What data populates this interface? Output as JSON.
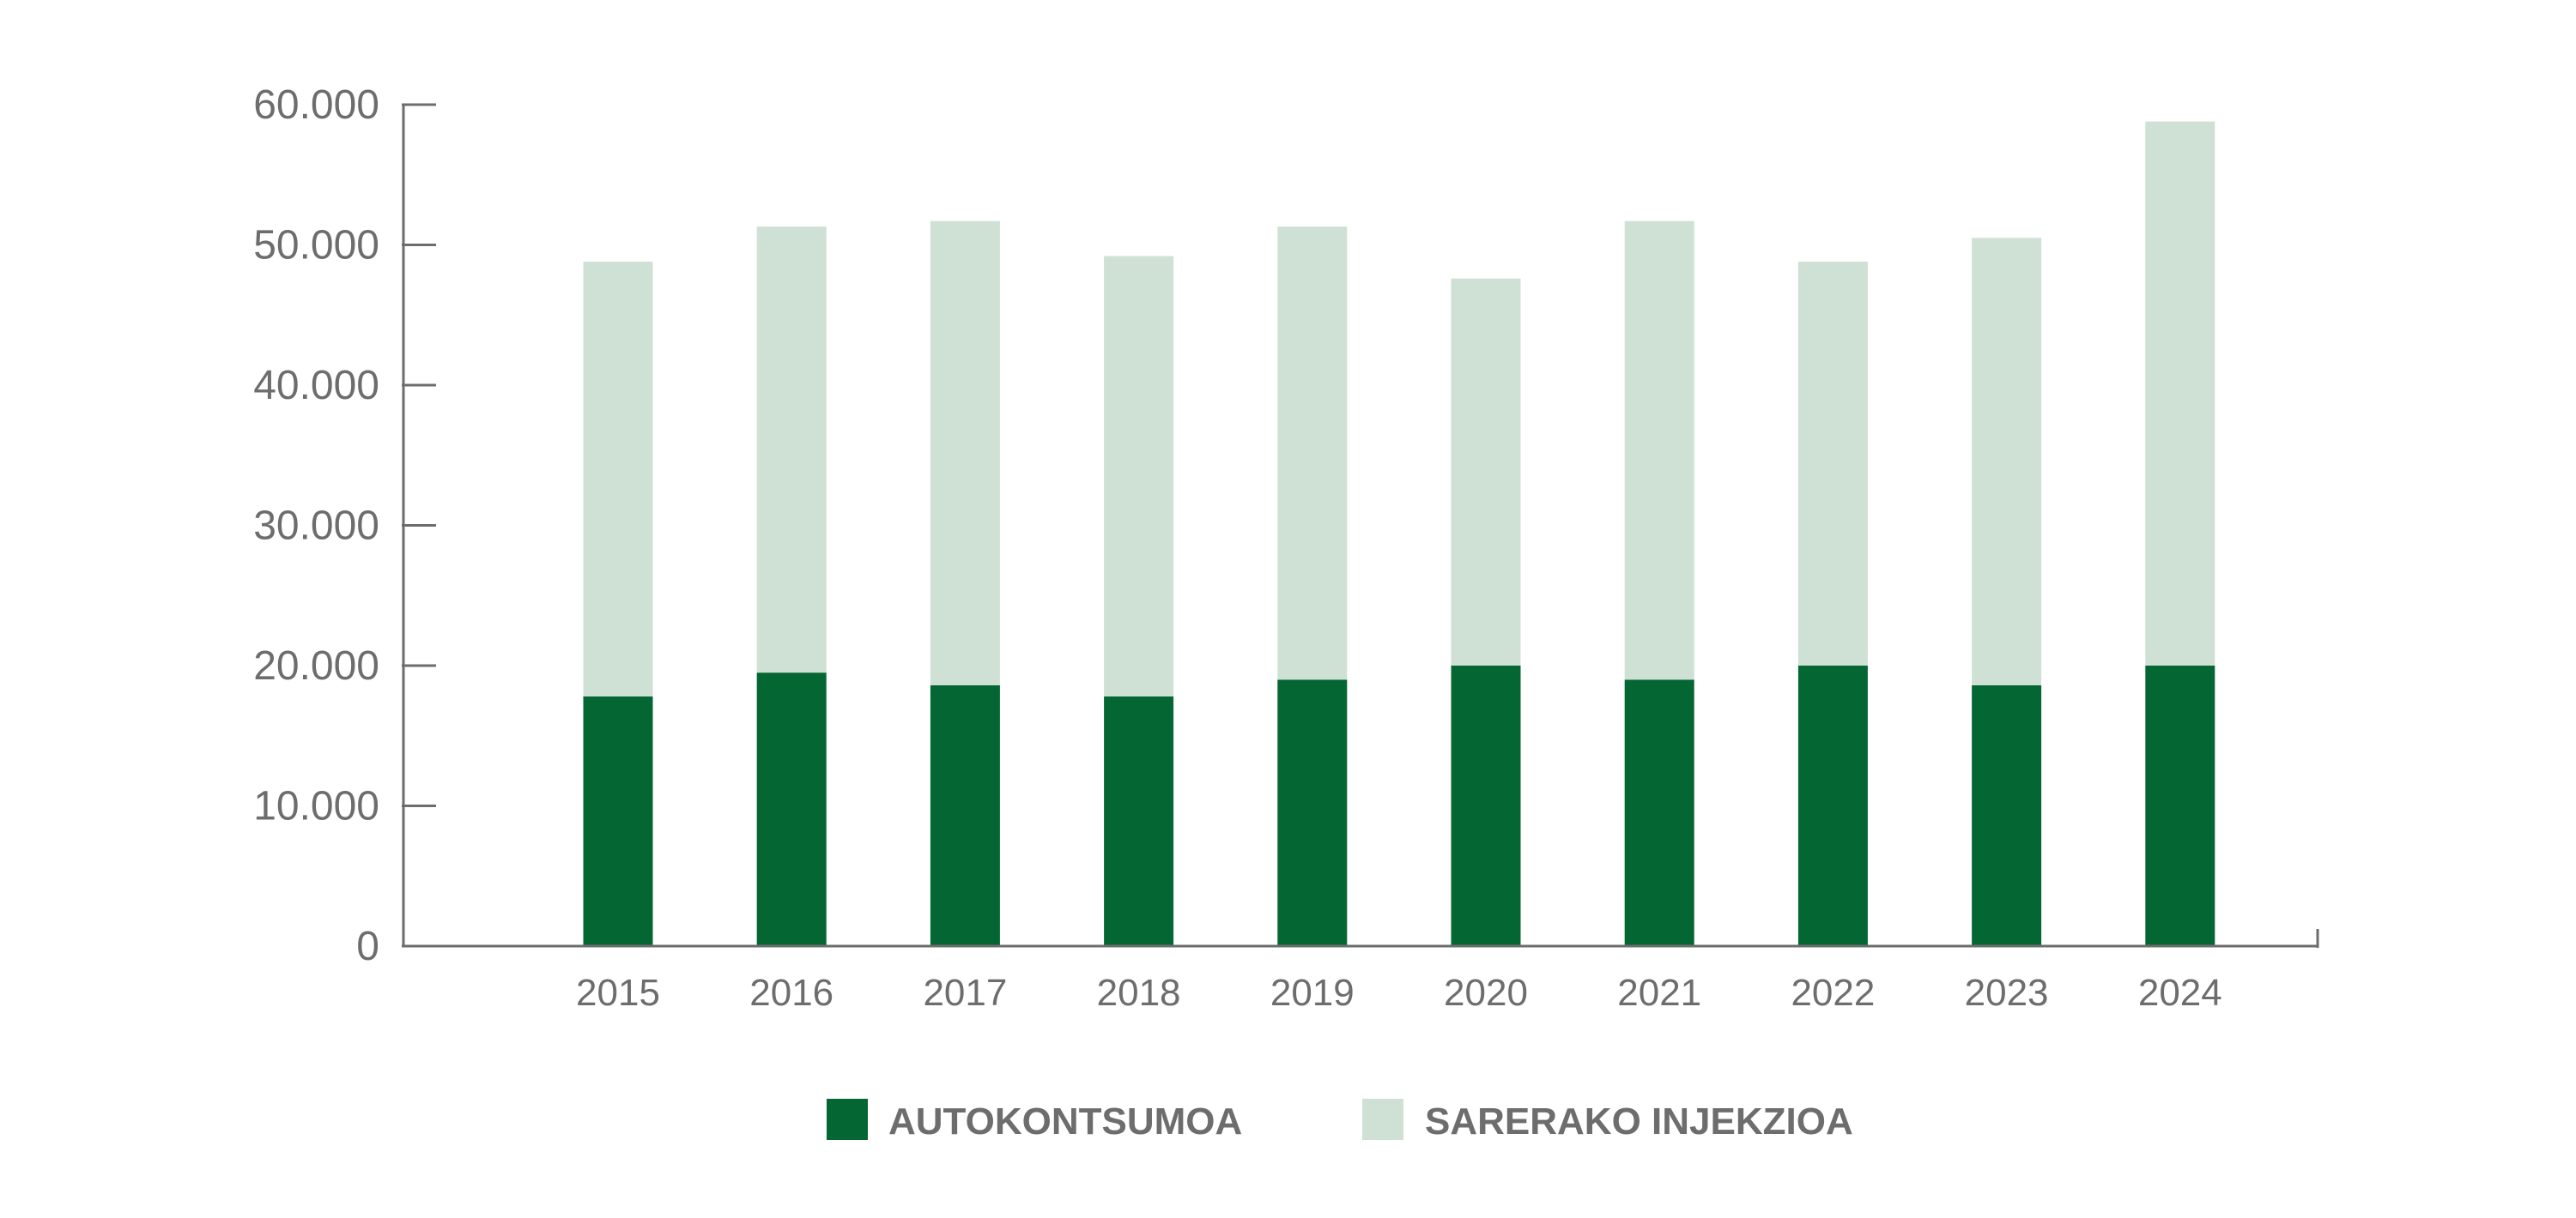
{
  "chart_data": {
    "type": "bar",
    "stacked": true,
    "title": "",
    "xlabel": "",
    "ylabel": "",
    "categories": [
      "2015",
      "2016",
      "2017",
      "2018",
      "2019",
      "2020",
      "2021",
      "2022",
      "2023",
      "2024"
    ],
    "series": [
      {
        "name": "AUTOKONTSUMOA",
        "color": "#046633",
        "values": [
          17800,
          19500,
          18600,
          17800,
          19000,
          20000,
          19000,
          20000,
          18600,
          20000
        ]
      },
      {
        "name": "SARERAKO INJEKZIOA",
        "color": "#cfe0d4",
        "values": [
          31000,
          31800,
          33100,
          31400,
          32300,
          27600,
          32700,
          28800,
          31900,
          38800
        ]
      }
    ],
    "ylim": [
      0,
      60000
    ],
    "yticks": [
      0,
      10000,
      20000,
      30000,
      40000,
      50000,
      60000
    ],
    "ytick_labels": [
      "0",
      "10.000",
      "20.000",
      "30.000",
      "40.000",
      "50.000",
      "60.000"
    ],
    "grid": false,
    "legend_position": "bottom-center",
    "axis_color": "#6d6d6d"
  }
}
